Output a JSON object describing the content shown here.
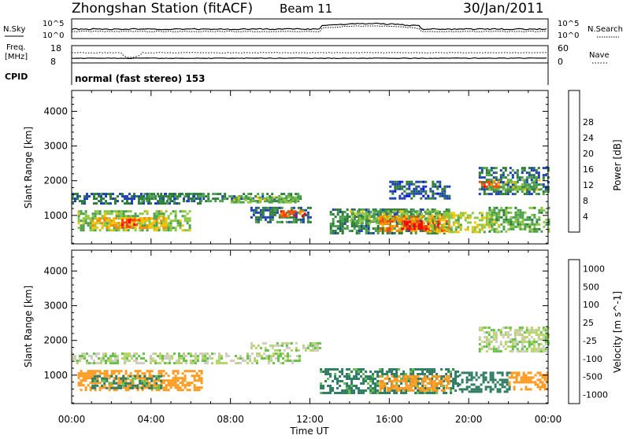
{
  "header": {
    "station": "Zhongshan Station (fitACF)",
    "beam": "Beam 11",
    "date": "30/Jan/2011"
  },
  "top_panels": {
    "noise": {
      "left_label": "N.Sky",
      "right_label": "N.Search",
      "left_ticks": [
        "10^5",
        "10^0"
      ],
      "right_ticks": [
        "10^5",
        "10^0"
      ]
    },
    "freq": {
      "left_label_line1": "Freq.",
      "left_label_line2": "[MHz]",
      "left_ticks": [
        "18",
        "8"
      ],
      "right_label": "Nave",
      "right_ticks": [
        "60",
        "0"
      ]
    },
    "cpid": {
      "label": "CPID",
      "value": "normal (fast stereo) 153"
    }
  },
  "colors": {
    "power": [
      "#0000ff",
      "#1e40b4",
      "#2d7d3a",
      "#4aa04f",
      "#8cc63f",
      "#f2c300",
      "#ff8c00",
      "#ff4500",
      "#ff0000"
    ],
    "velocity": [
      "#ff0000",
      "#ff6000",
      "#ff9a1f",
      "#cfccc0",
      "#b7d46b",
      "#66c04a",
      "#2e7d62",
      "#1f3fb0"
    ]
  },
  "chart_data": [
    {
      "type": "heatmap",
      "title": "Power",
      "ylabel": "Slant Range [km]",
      "xlabel": "Time UT",
      "x_range_hours": [
        0,
        24
      ],
      "ylim": [
        180,
        4600
      ],
      "x_ticks": [
        "00:00",
        "04:00",
        "08:00",
        "12:00",
        "16:00",
        "20:00",
        "00:00"
      ],
      "y_ticks": [
        1000,
        2000,
        3000,
        4000
      ],
      "colorbar": {
        "label": "Power [dB]",
        "ticks": [
          "4",
          "8",
          "12",
          "16",
          "20",
          "24",
          "28"
        ],
        "range": [
          0,
          30
        ]
      },
      "regions": [
        {
          "t": [
            0.0,
            6.5
          ],
          "r": [
            1350,
            1650
          ],
          "value": 7
        },
        {
          "t": [
            0.3,
            6.0
          ],
          "r": [
            550,
            1150
          ],
          "value": 14
        },
        {
          "t": [
            1.0,
            4.8
          ],
          "r": [
            650,
            950
          ],
          "value": 20
        },
        {
          "t": [
            2.5,
            3.4
          ],
          "r": [
            650,
            900
          ],
          "value": 25
        },
        {
          "t": [
            3.5,
            11.5
          ],
          "r": [
            1400,
            1650
          ],
          "value": 9
        },
        {
          "t": [
            8.0,
            11.5
          ],
          "r": [
            1350,
            1550
          ],
          "value": 14
        },
        {
          "t": [
            9.0,
            12.0
          ],
          "r": [
            800,
            1250
          ],
          "value": 8
        },
        {
          "t": [
            10.5,
            11.8
          ],
          "r": [
            950,
            1150
          ],
          "value": 25
        },
        {
          "t": [
            13.0,
            19.0
          ],
          "r": [
            500,
            1200
          ],
          "value": 9
        },
        {
          "t": [
            14.0,
            18.5
          ],
          "r": [
            800,
            1150
          ],
          "value": 14
        },
        {
          "t": [
            15.5,
            19.0
          ],
          "r": [
            550,
            1000
          ],
          "value": 22
        },
        {
          "t": [
            16.5,
            18.5
          ],
          "r": [
            600,
            850
          ],
          "value": 28
        },
        {
          "t": [
            18.0,
            21.5
          ],
          "r": [
            550,
            1100
          ],
          "value": 16
        },
        {
          "t": [
            16.0,
            19.0
          ],
          "r": [
            1500,
            2000
          ],
          "value": 6
        },
        {
          "t": [
            20.5,
            24.0
          ],
          "r": [
            1650,
            2400
          ],
          "value": 8
        },
        {
          "t": [
            21.0,
            23.5
          ],
          "r": [
            1750,
            2050
          ],
          "value": 14
        },
        {
          "t": [
            20.5,
            21.5
          ],
          "r": [
            1850,
            2000
          ],
          "value": 26
        },
        {
          "t": [
            21.0,
            24.0
          ],
          "r": [
            550,
            1250
          ],
          "value": 12
        }
      ]
    },
    {
      "type": "heatmap",
      "title": "Velocity",
      "ylabel": "Slant Range [km]",
      "xlabel": "Time UT",
      "x_range_hours": [
        0,
        24
      ],
      "ylim": [
        180,
        4600
      ],
      "x_ticks": [
        "00:00",
        "04:00",
        "08:00",
        "12:00",
        "16:00",
        "20:00",
        "00:00"
      ],
      "y_ticks": [
        1000,
        2000,
        3000,
        4000
      ],
      "colorbar": {
        "label": "Velocity [m s^-1]",
        "ticks": [
          "1000",
          "500",
          "100",
          "25",
          "-25",
          "-100",
          "-500",
          "-1000"
        ]
      },
      "regions": [
        {
          "t": [
            0.0,
            11.5
          ],
          "r": [
            1350,
            1650
          ],
          "value": 0
        },
        {
          "t": [
            9.0,
            12.5
          ],
          "r": [
            1700,
            1950
          ],
          "value": 0
        },
        {
          "t": [
            20.5,
            24.0
          ],
          "r": [
            1700,
            2400
          ],
          "value": 0
        },
        {
          "t": [
            0.3,
            6.5
          ],
          "r": [
            550,
            1150
          ],
          "value": -300
        },
        {
          "t": [
            1.0,
            4.5
          ],
          "r": [
            600,
            1000
          ],
          "value": 150
        },
        {
          "t": [
            12.5,
            19.5
          ],
          "r": [
            500,
            1200
          ],
          "value": 150
        },
        {
          "t": [
            15.5,
            19.0
          ],
          "r": [
            550,
            1000
          ],
          "value": -300
        },
        {
          "t": [
            19.5,
            22.0
          ],
          "r": [
            500,
            1100
          ],
          "value": 300
        },
        {
          "t": [
            22.0,
            24.0
          ],
          "r": [
            600,
            1100
          ],
          "value": -200
        }
      ]
    }
  ]
}
